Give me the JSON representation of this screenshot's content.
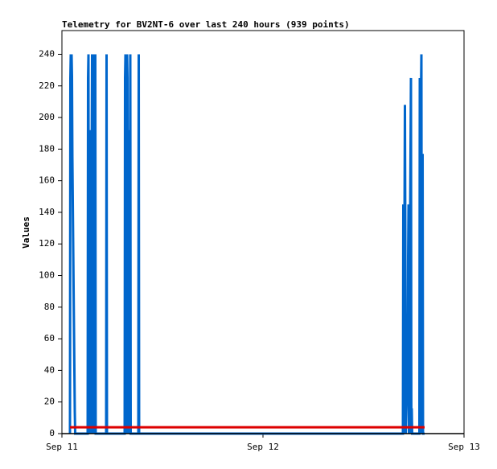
{
  "chart_data": {
    "type": "line",
    "title": "Telemetry for BV2NT-6 over last 240 hours (939 points)",
    "y_label": "Values",
    "xlim": [
      11,
      13
    ],
    "xticks": [
      {
        "value": 11,
        "label": "Sep 11"
      },
      {
        "value": 12,
        "label": "Sep 12"
      },
      {
        "value": 13,
        "label": "Sep 13"
      }
    ],
    "ylim": [
      0,
      255
    ],
    "yticks": [
      0,
      20,
      40,
      60,
      80,
      100,
      120,
      140,
      160,
      180,
      200,
      220,
      240
    ],
    "grid": false,
    "series": [
      {
        "color": "#0066cc",
        "x": [
          11.04,
          11.042,
          11.044,
          11.046,
          11.048,
          11.05,
          11.052,
          11.054,
          11.056,
          11.058,
          11.06,
          11.062,
          11.064,
          11.066,
          11.128,
          11.13,
          11.132,
          11.134,
          11.14,
          11.142,
          11.144,
          11.148,
          11.15,
          11.152,
          11.158,
          11.16,
          11.162,
          11.166,
          11.168,
          11.22,
          11.222,
          11.224,
          11.312,
          11.314,
          11.316,
          11.318,
          11.324,
          11.326,
          11.328,
          11.332,
          11.334,
          11.336,
          11.34,
          11.342,
          11.38,
          11.382,
          11.384,
          12.696,
          12.698,
          12.7,
          12.706,
          12.708,
          12.71,
          12.72,
          12.722,
          12.724,
          12.726,
          12.736,
          12.738,
          12.74,
          12.742,
          12.778,
          12.78,
          12.782,
          12.786,
          12.788,
          12.79,
          12.794,
          12.796,
          12.804
        ],
        "values": [
          0,
          225,
          240,
          200,
          240,
          226,
          175,
          147,
          120,
          93,
          67,
          40,
          14,
          0,
          0,
          225,
          240,
          0,
          192,
          145,
          0,
          177,
          240,
          0,
          240,
          225,
          0,
          240,
          0,
          0,
          240,
          0,
          0,
          225,
          240,
          0,
          240,
          225,
          0,
          97,
          192,
          0,
          240,
          0,
          0,
          240,
          0,
          0,
          145,
          0,
          208,
          128,
          0,
          48,
          112,
          145,
          0,
          225,
          0,
          16,
          0,
          0,
          225,
          0,
          216,
          240,
          0,
          177,
          0,
          0
        ]
      },
      {
        "color": "#dd0000",
        "x": [
          11.04,
          12.804
        ],
        "values": [
          4,
          4
        ]
      }
    ]
  }
}
